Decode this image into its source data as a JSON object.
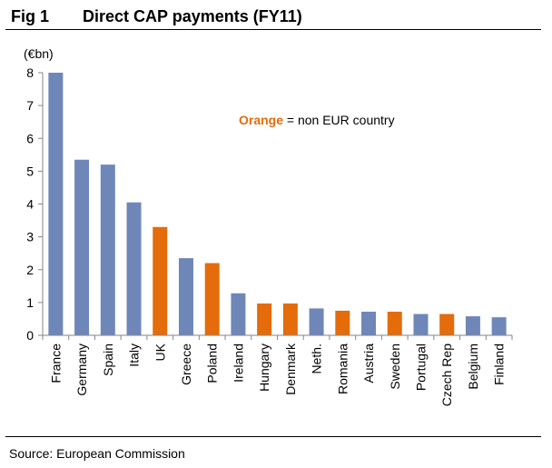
{
  "header": {
    "fig_label": "Fig 1",
    "title": "Direct CAP payments (FY11)"
  },
  "source": "Source: European Commission",
  "colors": {
    "eur": "#6f87b8",
    "non_eur": "#e46c0a",
    "axis": "#868686",
    "annotation_highlight": "#e46c0a"
  },
  "chart_data": {
    "type": "bar",
    "title": "Direct CAP payments (FY11)",
    "ylabel": "(€bn)",
    "xlabel": "",
    "ylim": [
      0,
      8
    ],
    "yticks": [
      0,
      1,
      2,
      3,
      4,
      5,
      6,
      7,
      8
    ],
    "grid": false,
    "annotation": {
      "highlight": "Orange",
      "rest": " = non EUR country"
    },
    "categories": [
      "France",
      "Germany",
      "Spain",
      "Italy",
      "UK",
      "Greece",
      "Poland",
      "Ireland",
      "Hungary",
      "Denmark",
      "Neth.",
      "Romania",
      "Austria",
      "Sweden",
      "Portugal",
      "Czech Rep",
      "Belgium",
      "Finland"
    ],
    "values": [
      8.0,
      5.35,
      5.2,
      4.05,
      3.3,
      2.35,
      2.2,
      1.28,
      0.97,
      0.97,
      0.82,
      0.75,
      0.72,
      0.72,
      0.65,
      0.65,
      0.58,
      0.55
    ],
    "non_eur": [
      false,
      false,
      false,
      false,
      true,
      false,
      true,
      false,
      true,
      true,
      false,
      true,
      false,
      true,
      false,
      true,
      false,
      false
    ]
  }
}
